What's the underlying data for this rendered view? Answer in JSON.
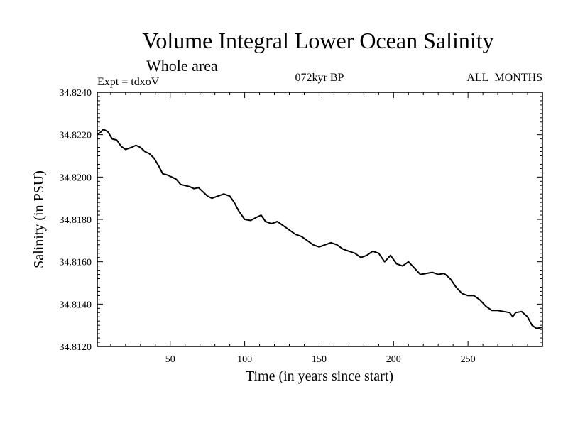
{
  "chart_data": {
    "type": "line",
    "title": "Volume Integral Lower Ocean Salinity",
    "subtitle": "Whole area",
    "expt_label": "Expt = tdxoV",
    "period_label": "072kyr BP",
    "months_label": "ALL_MONTHS",
    "xlabel": "Time (in years since start)",
    "ylabel": "Salinity (in PSU)",
    "xlim": [
      1,
      300
    ],
    "ylim": [
      34.812,
      34.824
    ],
    "x_ticks": [
      50,
      100,
      150,
      200,
      250
    ],
    "x_tick_labels": [
      "50",
      "100",
      "150",
      "200",
      "250"
    ],
    "y_ticks": [
      34.812,
      34.814,
      34.816,
      34.818,
      34.82,
      34.822,
      34.824
    ],
    "y_tick_labels": [
      "34.8120",
      "34.8140",
      "34.8160",
      "34.8180",
      "34.8200",
      "34.8220",
      "34.8240"
    ],
    "grid": false,
    "series": [
      {
        "color": "#000000",
        "x": [
          1,
          3,
          5,
          8,
          11,
          14,
          17,
          20,
          24,
          27,
          30,
          33,
          36,
          39,
          42,
          45,
          48,
          51,
          54,
          57,
          60,
          63,
          66,
          69,
          72,
          75,
          78,
          82,
          86,
          90,
          93,
          96,
          100,
          104,
          108,
          111,
          114,
          118,
          122,
          126,
          130,
          134,
          138,
          142,
          146,
          150,
          154,
          158,
          162,
          166,
          170,
          174,
          178,
          182,
          186,
          190,
          194,
          198,
          202,
          206,
          210,
          214,
          218,
          222,
          226,
          230,
          234,
          238,
          242,
          246,
          250,
          254,
          258,
          262,
          266,
          270,
          274,
          278,
          280,
          282,
          286,
          290,
          293,
          296,
          300
        ],
        "y": [
          34.822,
          34.8221,
          34.82225,
          34.82215,
          34.8218,
          34.82175,
          34.82145,
          34.8213,
          34.8214,
          34.8215,
          34.8214,
          34.8212,
          34.8211,
          34.8209,
          34.82055,
          34.82015,
          34.8201,
          34.82,
          34.8199,
          34.81965,
          34.8196,
          34.81955,
          34.81945,
          34.8195,
          34.8193,
          34.8191,
          34.819,
          34.8191,
          34.8192,
          34.8191,
          34.8188,
          34.8184,
          34.818,
          34.81795,
          34.8181,
          34.8182,
          34.8179,
          34.8178,
          34.8179,
          34.8177,
          34.8175,
          34.8173,
          34.8172,
          34.817,
          34.8168,
          34.8167,
          34.8168,
          34.8169,
          34.8168,
          34.8166,
          34.8165,
          34.8164,
          34.8162,
          34.8163,
          34.8165,
          34.8164,
          34.816,
          34.8163,
          34.8159,
          34.8158,
          34.816,
          34.8157,
          34.8154,
          34.81545,
          34.8155,
          34.8154,
          34.81545,
          34.8152,
          34.8148,
          34.8145,
          34.8144,
          34.8144,
          34.8142,
          34.8139,
          34.8137,
          34.8137,
          34.81365,
          34.8136,
          34.8134,
          34.8136,
          34.81365,
          34.8134,
          34.813,
          34.81285,
          34.8129
        ]
      }
    ]
  }
}
